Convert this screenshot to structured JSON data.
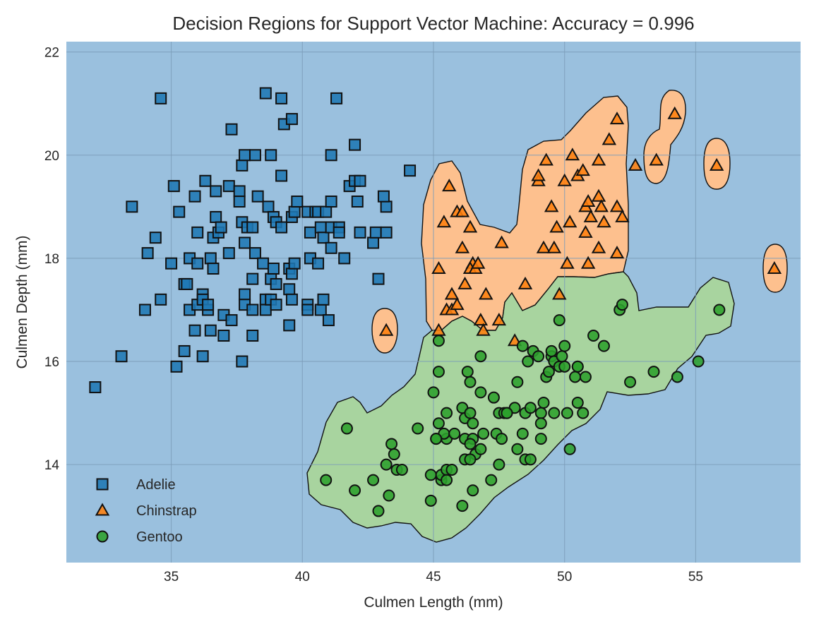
{
  "chart_data": {
    "type": "scatter",
    "title": "Decision Regions for Support Vector Machine: Accuracy = 0.996",
    "xlabel": "Culmen Length (mm)",
    "ylabel": "Culmen Depth (mm)",
    "xlim": [
      31.0,
      59.0
    ],
    "ylim": [
      12.1,
      22.2
    ],
    "xticks": [
      35,
      40,
      45,
      50,
      55
    ],
    "yticks": [
      14,
      16,
      18,
      20,
      22
    ],
    "grid": true,
    "legend_position": "lower-left",
    "background_region_color": "#9ac0de",
    "region_colors": {
      "Adelie": "#9ac0de",
      "Chinstrap": "#fdc08e",
      "Gentoo": "#a8d49f"
    },
    "series": [
      {
        "name": "Adelie",
        "marker": "square",
        "color": "#1f77b4",
        "points": [
          [
            32.1,
            15.5
          ],
          [
            33.1,
            16.1
          ],
          [
            33.5,
            19.0
          ],
          [
            34.0,
            17.0
          ],
          [
            34.1,
            18.1
          ],
          [
            34.4,
            18.4
          ],
          [
            34.6,
            21.1
          ],
          [
            34.6,
            17.2
          ],
          [
            35.0,
            17.9
          ],
          [
            35.1,
            19.4
          ],
          [
            35.2,
            15.9
          ],
          [
            35.3,
            18.9
          ],
          [
            35.5,
            17.5
          ],
          [
            35.5,
            16.2
          ],
          [
            35.6,
            17.5
          ],
          [
            35.7,
            17.0
          ],
          [
            35.7,
            18.0
          ],
          [
            35.9,
            19.2
          ],
          [
            35.9,
            16.6
          ],
          [
            36.0,
            18.5
          ],
          [
            36.0,
            17.9
          ],
          [
            36.0,
            17.1
          ],
          [
            36.2,
            16.1
          ],
          [
            36.2,
            17.3
          ],
          [
            36.2,
            17.2
          ],
          [
            36.3,
            19.5
          ],
          [
            36.4,
            17.0
          ],
          [
            36.4,
            17.1
          ],
          [
            36.5,
            18.0
          ],
          [
            36.5,
            16.6
          ],
          [
            36.6,
            18.4
          ],
          [
            36.6,
            17.8
          ],
          [
            36.7,
            19.3
          ],
          [
            36.7,
            18.8
          ],
          [
            36.8,
            18.5
          ],
          [
            36.9,
            18.6
          ],
          [
            37.0,
            16.9
          ],
          [
            37.0,
            16.5
          ],
          [
            37.2,
            18.1
          ],
          [
            37.2,
            19.4
          ],
          [
            37.3,
            20.5
          ],
          [
            37.3,
            16.8
          ],
          [
            37.6,
            19.3
          ],
          [
            37.6,
            19.1
          ],
          [
            37.7,
            19.8
          ],
          [
            37.7,
            18.7
          ],
          [
            37.7,
            16.0
          ],
          [
            37.8,
            20.0
          ],
          [
            37.8,
            18.3
          ],
          [
            37.8,
            17.3
          ],
          [
            37.8,
            17.1
          ],
          [
            37.9,
            18.6
          ],
          [
            38.1,
            18.6
          ],
          [
            38.1,
            17.6
          ],
          [
            38.1,
            17.0
          ],
          [
            38.1,
            16.5
          ],
          [
            38.2,
            18.1
          ],
          [
            38.2,
            20.0
          ],
          [
            38.3,
            19.2
          ],
          [
            38.5,
            17.9
          ],
          [
            38.6,
            21.2
          ],
          [
            38.6,
            17.2
          ],
          [
            38.6,
            17.0
          ],
          [
            38.7,
            19.0
          ],
          [
            38.8,
            20.0
          ],
          [
            38.8,
            17.6
          ],
          [
            38.8,
            17.2
          ],
          [
            38.9,
            18.8
          ],
          [
            38.9,
            17.8
          ],
          [
            39.0,
            18.7
          ],
          [
            39.0,
            17.5
          ],
          [
            39.0,
            17.1
          ],
          [
            39.2,
            21.1
          ],
          [
            39.2,
            19.6
          ],
          [
            39.2,
            18.6
          ],
          [
            39.3,
            20.6
          ],
          [
            39.5,
            17.8
          ],
          [
            39.5,
            17.4
          ],
          [
            39.5,
            16.7
          ],
          [
            39.6,
            20.7
          ],
          [
            39.6,
            18.8
          ],
          [
            39.6,
            17.7
          ],
          [
            39.6,
            17.2
          ],
          [
            39.7,
            18.9
          ],
          [
            39.7,
            17.9
          ],
          [
            39.8,
            19.1
          ],
          [
            40.2,
            18.9
          ],
          [
            40.2,
            17.1
          ],
          [
            40.2,
            17.0
          ],
          [
            40.3,
            18.5
          ],
          [
            40.3,
            18.0
          ],
          [
            40.5,
            18.9
          ],
          [
            40.6,
            18.9
          ],
          [
            40.6,
            17.9
          ],
          [
            40.7,
            18.6
          ],
          [
            40.7,
            17.0
          ],
          [
            40.8,
            18.4
          ],
          [
            40.8,
            17.2
          ],
          [
            40.9,
            18.9
          ],
          [
            41.0,
            16.8
          ],
          [
            41.1,
            20.0
          ],
          [
            41.1,
            19.1
          ],
          [
            41.1,
            18.6
          ],
          [
            41.1,
            18.2
          ],
          [
            41.3,
            21.1
          ],
          [
            41.4,
            18.6
          ],
          [
            41.4,
            18.5
          ],
          [
            41.6,
            18.0
          ],
          [
            41.8,
            19.4
          ],
          [
            42.0,
            20.2
          ],
          [
            42.0,
            19.5
          ],
          [
            42.1,
            19.1
          ],
          [
            42.2,
            19.5
          ],
          [
            42.2,
            18.5
          ],
          [
            42.7,
            18.3
          ],
          [
            42.8,
            18.5
          ],
          [
            42.9,
            17.6
          ],
          [
            43.2,
            19.0
          ],
          [
            43.2,
            18.5
          ],
          [
            43.1,
            19.2
          ],
          [
            44.1,
            19.7
          ]
        ]
      },
      {
        "name": "Chinstrap",
        "marker": "triangle",
        "color": "#ff7f0e",
        "points": [
          [
            43.2,
            16.6
          ],
          [
            45.2,
            17.8
          ],
          [
            45.2,
            16.6
          ],
          [
            45.4,
            18.7
          ],
          [
            45.5,
            17.0
          ],
          [
            45.6,
            19.4
          ],
          [
            45.7,
            17.3
          ],
          [
            45.7,
            17.0
          ],
          [
            45.9,
            17.1
          ],
          [
            45.9,
            18.9
          ],
          [
            46.1,
            18.9
          ],
          [
            46.1,
            18.2
          ],
          [
            46.2,
            17.5
          ],
          [
            46.4,
            18.6
          ],
          [
            46.5,
            17.9
          ],
          [
            46.4,
            17.8
          ],
          [
            46.6,
            17.8
          ],
          [
            46.7,
            17.9
          ],
          [
            46.8,
            16.8
          ],
          [
            46.9,
            16.6
          ],
          [
            47.0,
            17.3
          ],
          [
            47.5,
            16.8
          ],
          [
            47.6,
            18.3
          ],
          [
            48.1,
            16.4
          ],
          [
            48.5,
            17.5
          ],
          [
            49.0,
            19.5
          ],
          [
            49.0,
            19.6
          ],
          [
            49.2,
            18.2
          ],
          [
            49.3,
            19.9
          ],
          [
            49.5,
            19.0
          ],
          [
            49.6,
            18.2
          ],
          [
            49.7,
            18.6
          ],
          [
            49.8,
            17.3
          ],
          [
            50.0,
            19.5
          ],
          [
            50.1,
            17.9
          ],
          [
            50.2,
            18.7
          ],
          [
            50.3,
            20.0
          ],
          [
            50.5,
            19.6
          ],
          [
            50.7,
            19.7
          ],
          [
            50.8,
            18.5
          ],
          [
            50.8,
            19.0
          ],
          [
            50.9,
            17.9
          ],
          [
            50.9,
            19.1
          ],
          [
            51.0,
            18.8
          ],
          [
            51.3,
            18.2
          ],
          [
            51.3,
            19.2
          ],
          [
            51.3,
            19.9
          ],
          [
            51.4,
            19.0
          ],
          [
            51.5,
            18.7
          ],
          [
            51.7,
            20.3
          ],
          [
            52.0,
            18.1
          ],
          [
            52.0,
            19.0
          ],
          [
            52.0,
            20.7
          ],
          [
            52.2,
            18.8
          ],
          [
            52.7,
            19.8
          ],
          [
            53.5,
            19.9
          ],
          [
            54.2,
            20.8
          ],
          [
            55.8,
            19.8
          ],
          [
            58.0,
            17.8
          ]
        ]
      },
      {
        "name": "Gentoo",
        "marker": "circle",
        "color": "#2ca02c",
        "points": [
          [
            40.9,
            13.7
          ],
          [
            41.7,
            14.7
          ],
          [
            42.0,
            13.5
          ],
          [
            42.7,
            13.7
          ],
          [
            42.9,
            13.1
          ],
          [
            43.2,
            14.0
          ],
          [
            43.3,
            13.4
          ],
          [
            43.4,
            14.4
          ],
          [
            43.5,
            14.2
          ],
          [
            43.6,
            13.9
          ],
          [
            43.8,
            13.9
          ],
          [
            44.4,
            14.7
          ],
          [
            44.9,
            13.8
          ],
          [
            44.9,
            13.3
          ],
          [
            45.0,
            15.4
          ],
          [
            45.1,
            14.5
          ],
          [
            45.2,
            16.4
          ],
          [
            45.2,
            15.8
          ],
          [
            45.2,
            14.8
          ],
          [
            45.3,
            13.7
          ],
          [
            45.3,
            13.8
          ],
          [
            45.5,
            14.5
          ],
          [
            45.5,
            13.9
          ],
          [
            45.5,
            13.7
          ],
          [
            45.7,
            13.9
          ],
          [
            45.4,
            14.6
          ],
          [
            45.5,
            15.0
          ],
          [
            45.8,
            14.6
          ],
          [
            46.1,
            13.2
          ],
          [
            46.2,
            14.5
          ],
          [
            46.2,
            14.1
          ],
          [
            46.2,
            14.9
          ],
          [
            46.1,
            15.1
          ],
          [
            46.4,
            15.6
          ],
          [
            46.4,
            15.0
          ],
          [
            46.5,
            14.5
          ],
          [
            46.5,
            13.5
          ],
          [
            46.4,
            14.4
          ],
          [
            46.3,
            15.8
          ],
          [
            46.5,
            14.8
          ],
          [
            46.6,
            14.2
          ],
          [
            46.8,
            14.3
          ],
          [
            46.8,
            15.4
          ],
          [
            46.8,
            16.1
          ],
          [
            46.9,
            14.6
          ],
          [
            47.2,
            13.7
          ],
          [
            47.3,
            15.3
          ],
          [
            47.4,
            14.6
          ],
          [
            47.5,
            14.0
          ],
          [
            47.5,
            15.0
          ],
          [
            47.6,
            14.5
          ],
          [
            47.7,
            15.0
          ],
          [
            47.8,
            15.0
          ],
          [
            48.1,
            15.1
          ],
          [
            48.2,
            15.6
          ],
          [
            48.2,
            14.3
          ],
          [
            48.4,
            14.6
          ],
          [
            48.4,
            16.3
          ],
          [
            48.5,
            14.1
          ],
          [
            48.5,
            15.0
          ],
          [
            48.6,
            16.0
          ],
          [
            48.7,
            15.1
          ],
          [
            48.7,
            14.1
          ],
          [
            48.8,
            16.2
          ],
          [
            49.0,
            16.1
          ],
          [
            49.1,
            15.0
          ],
          [
            49.1,
            14.8
          ],
          [
            49.1,
            14.5
          ],
          [
            49.2,
            15.2
          ],
          [
            49.3,
            15.7
          ],
          [
            49.4,
            15.8
          ],
          [
            49.5,
            16.1
          ],
          [
            49.5,
            16.2
          ],
          [
            49.6,
            16.0
          ],
          [
            49.6,
            15.0
          ],
          [
            49.8,
            16.8
          ],
          [
            49.8,
            15.9
          ],
          [
            49.9,
            16.1
          ],
          [
            50.0,
            16.3
          ],
          [
            50.0,
            15.9
          ],
          [
            50.1,
            15.0
          ],
          [
            50.2,
            14.3
          ],
          [
            50.4,
            15.7
          ],
          [
            50.5,
            15.9
          ],
          [
            50.5,
            15.2
          ],
          [
            50.7,
            15.0
          ],
          [
            50.8,
            15.7
          ],
          [
            51.1,
            16.5
          ],
          [
            51.5,
            16.3
          ],
          [
            52.1,
            17.0
          ],
          [
            52.2,
            17.1
          ],
          [
            52.5,
            15.6
          ],
          [
            53.4,
            15.8
          ],
          [
            54.3,
            15.7
          ],
          [
            55.1,
            16.0
          ],
          [
            55.9,
            17.0
          ],
          [
            50.5,
            15.9
          ],
          [
            47.8,
            15.0
          ],
          [
            46.4,
            14.1
          ],
          [
            45.1,
            14.5
          ]
        ]
      }
    ]
  }
}
